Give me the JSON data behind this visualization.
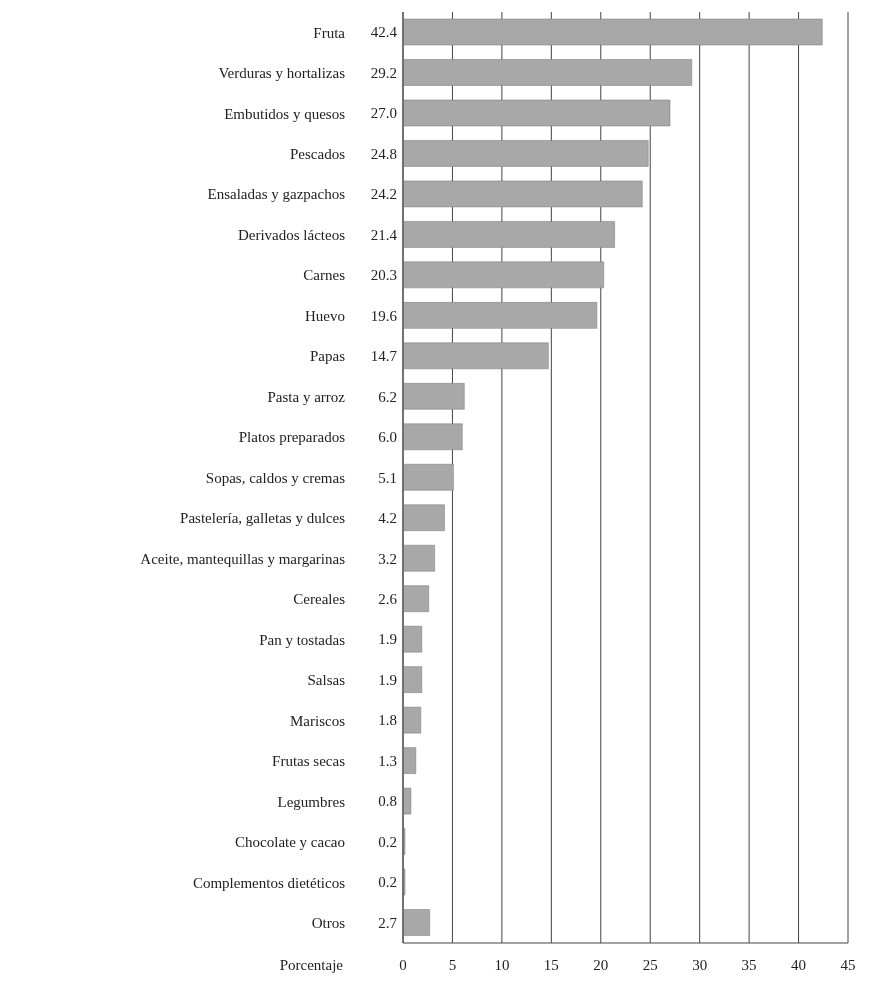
{
  "chart_data": {
    "type": "bar",
    "orientation": "horizontal",
    "xlabel": "Porcentaje",
    "categories": [
      "Fruta",
      "Verduras y hortalizas",
      "Embutidos y quesos",
      "Pescados",
      "Ensaladas y gazpachos",
      "Derivados lácteos",
      "Carnes",
      "Huevo",
      "Papas",
      "Pasta y arroz",
      "Platos preparados",
      "Sopas, caldos y cremas",
      "Pastelería, galletas y dulces",
      "Aceite, mantequillas y margarinas",
      "Cereales",
      "Pan y tostadas",
      "Salsas",
      "Mariscos",
      "Frutas secas",
      "Legumbres",
      "Chocolate y cacao",
      "Complementos dietéticos",
      "Otros"
    ],
    "values": [
      42.4,
      29.2,
      27.0,
      24.8,
      24.2,
      21.4,
      20.3,
      19.6,
      14.7,
      6.2,
      6.0,
      5.1,
      4.2,
      3.2,
      2.6,
      1.9,
      1.9,
      1.8,
      1.3,
      0.8,
      0.2,
      0.2,
      2.7
    ],
    "value_labels": [
      "42.4",
      "29.2",
      "27.0",
      "24.8",
      "24.2",
      "21.4",
      "20.3",
      "19.6",
      "14.7",
      "6.2",
      "6.0",
      "5.1",
      "4.2",
      "3.2",
      "2.6",
      "1.9",
      "1.9",
      "1.8",
      "1.3",
      "0.8",
      "0.2",
      "0.2",
      "2.7"
    ],
    "color": "#a8a8a8",
    "xlim": [
      0,
      45
    ],
    "xticks": [
      0,
      5,
      10,
      15,
      20,
      25,
      30,
      35,
      40,
      45
    ],
    "grid": "x"
  }
}
